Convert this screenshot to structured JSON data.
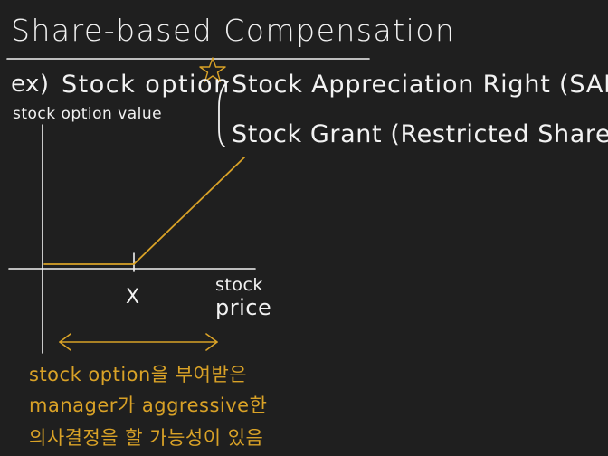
{
  "title": "Share-based Compensation",
  "example": {
    "label": "ex)",
    "options": [
      "Stock option",
      "Stock Appreciation Right (SAR)",
      "Stock Grant (Restricted Share)"
    ],
    "star_icon": "star-icon"
  },
  "graph": {
    "y_axis_label": "stock option value",
    "x_axis_label_line1": "stock",
    "x_axis_label_line2": "price",
    "strike_label": "X"
  },
  "note": {
    "lines": [
      "stock option을 부여받은",
      "manager가 aggressive한",
      "의사결정을 할 가능성이 있음"
    ]
  },
  "colors": {
    "background": "#1f1f1f",
    "chalk_white": "#f2f2f2",
    "highlight_gold": "#d9a227"
  }
}
